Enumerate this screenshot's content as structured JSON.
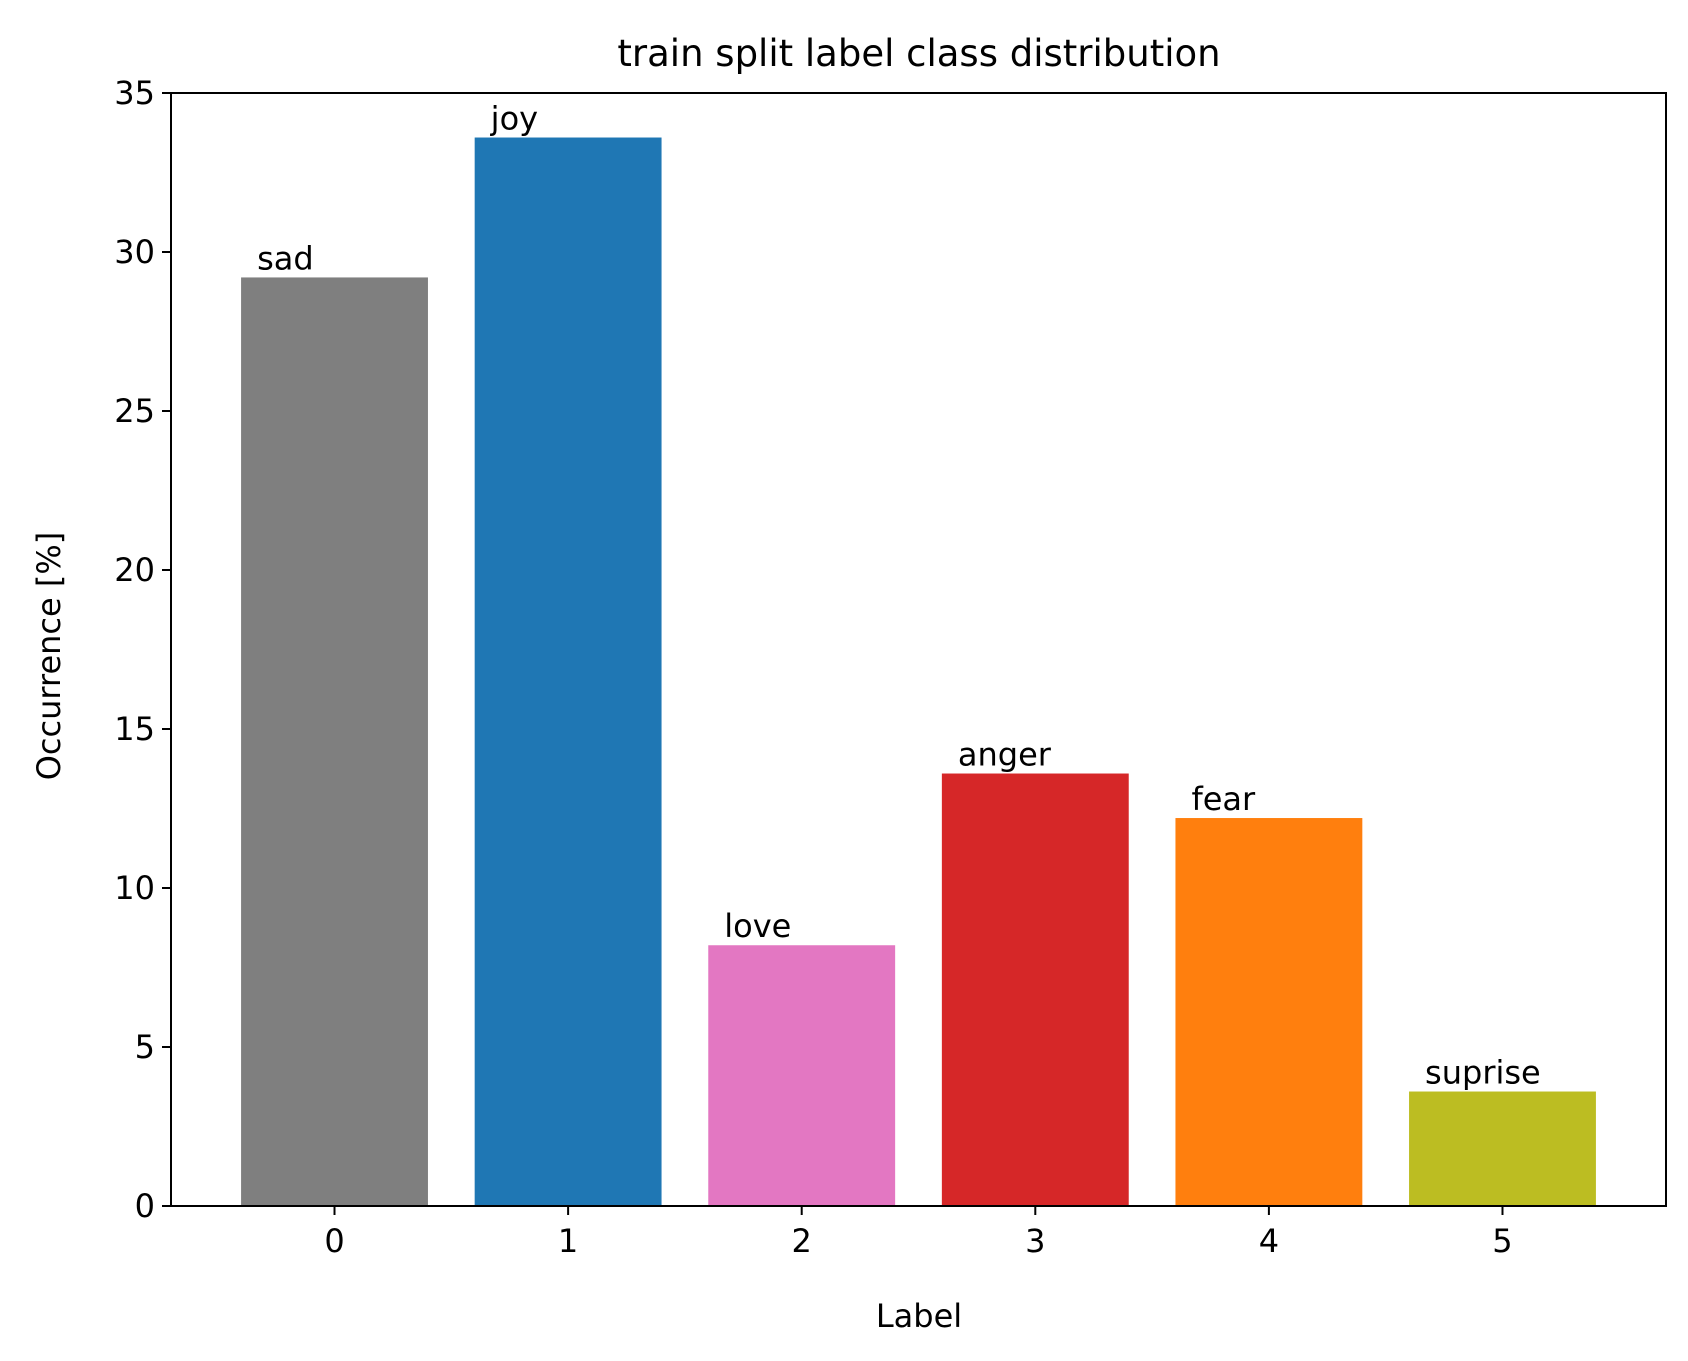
{
  "chart_data": {
    "type": "bar",
    "title": "train split label class distribution",
    "xlabel": "Label",
    "ylabel": "Occurrence [%]",
    "categories": [
      "0",
      "1",
      "2",
      "3",
      "4",
      "5"
    ],
    "values": [
      29.2,
      33.6,
      8.2,
      13.6,
      12.2,
      3.6
    ],
    "bar_labels": [
      "sad",
      "joy",
      "love",
      "anger",
      "fear",
      "suprise"
    ],
    "colors": [
      "#7f7f7f",
      "#1f77b4",
      "#e377c2",
      "#d62728",
      "#ff7f0e",
      "#bcbd22"
    ],
    "xlim": [
      -0.7,
      5.7
    ],
    "ylim": [
      0,
      35
    ],
    "yticks": [
      0,
      5,
      10,
      15,
      20,
      25,
      30,
      35
    ],
    "grid": false,
    "legend": "none"
  }
}
